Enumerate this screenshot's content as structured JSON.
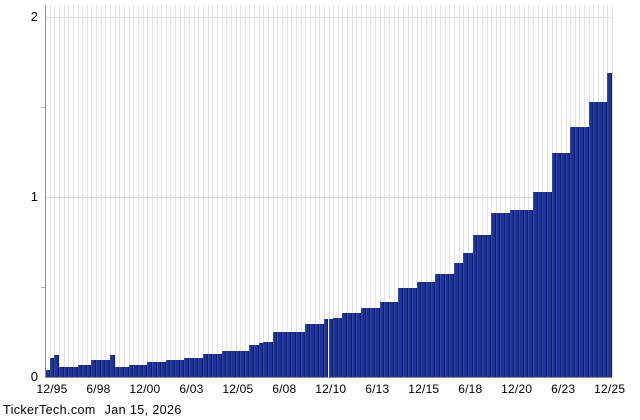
{
  "footer": {
    "source": "TickerTech.com",
    "date": "Jan 15, 2026"
  },
  "colors": {
    "bar_fill": "#1d319c",
    "bar_edge_dark": "#0d1c66",
    "bar_edge_light": "#32489f",
    "grid_vertical": "#e2e2e2",
    "grid_horizontal": "#d9d9d9",
    "axis": "#909090",
    "background": "#ffffff",
    "text": "#000000"
  },
  "chart_data": {
    "type": "bar",
    "title": "",
    "xlabel": "",
    "ylabel": "",
    "ylim": [
      0,
      2
    ],
    "ytick_labels": [
      "0",
      "1",
      "2"
    ],
    "ytick_values": [
      0,
      1,
      2
    ],
    "minor_ytick_values": [
      0.5,
      1.5
    ],
    "grid": "on",
    "legend": "none",
    "x_tick_labels": [
      "12/95",
      "6/98",
      "12/00",
      "6/03",
      "12/05",
      "6/08",
      "12/10",
      "6/13",
      "12/15",
      "6/18",
      "12/20",
      "6/23",
      "12/25"
    ],
    "quarters": [
      "9/95",
      "12/95",
      "3/96",
      "6/96",
      "9/96",
      "12/96",
      "3/97",
      "6/97",
      "9/97",
      "12/97",
      "3/98",
      "6/98",
      "9/98",
      "12/98",
      "3/99",
      "6/99",
      "9/99",
      "12/99",
      "3/00",
      "6/00",
      "9/00",
      "12/00",
      "3/01",
      "6/01",
      "9/01",
      "12/01",
      "3/02",
      "6/02",
      "9/02",
      "12/02",
      "3/03",
      "6/03",
      "9/03",
      "12/03",
      "3/04",
      "6/04",
      "9/04",
      "12/04",
      "3/05",
      "6/05",
      "9/05",
      "12/05",
      "3/06",
      "6/06",
      "9/06",
      "12/06",
      "3/07",
      "6/07",
      "9/07",
      "12/07",
      "3/08",
      "6/08",
      "9/08",
      "12/08",
      "3/09",
      "6/09",
      "9/09",
      "12/09",
      "3/10",
      "6/10",
      "9/10",
      "12/10",
      "3/11",
      "6/11",
      "9/11",
      "12/11",
      "3/12",
      "6/12",
      "9/12",
      "12/12",
      "3/13",
      "6/13",
      "9/13",
      "12/13",
      "3/14",
      "6/14",
      "9/14",
      "12/14",
      "3/15",
      "6/15",
      "9/15",
      "12/15",
      "3/16",
      "6/16",
      "9/16",
      "12/16",
      "3/17",
      "6/17",
      "9/17",
      "12/17",
      "3/18",
      "6/18",
      "9/18",
      "12/18",
      "3/19",
      "6/19",
      "9/19",
      "12/19",
      "3/20",
      "6/20",
      "9/20",
      "12/20",
      "3/21",
      "6/21",
      "9/21",
      "12/21",
      "3/22",
      "6/22",
      "9/22",
      "12/22",
      "3/23",
      "6/23",
      "9/23",
      "12/23",
      "3/24",
      "6/24",
      "9/24",
      "12/24",
      "3/25",
      "6/25",
      "9/25",
      "12/25"
    ],
    "values": [
      0.04,
      0.105,
      0.12,
      0.0575,
      0.0575,
      0.0575,
      0.0575,
      0.068,
      0.068,
      0.068,
      0.095,
      0.095,
      0.095,
      0.095,
      0.124,
      0.0555,
      0.0555,
      0.0555,
      0.0685,
      0.0695,
      0.0695,
      0.0695,
      0.083,
      0.083,
      0.083,
      0.083,
      0.094,
      0.094,
      0.094,
      0.094,
      0.104,
      0.104,
      0.104,
      0.104,
      0.128,
      0.128,
      0.128,
      0.128,
      0.144,
      0.144,
      0.144,
      0.142,
      0.142,
      0.142,
      0.178,
      0.178,
      0.187,
      0.196,
      0.196,
      0.252,
      0.252,
      0.252,
      0.25,
      0.248,
      0.248,
      0.248,
      0.294,
      0.294,
      0.294,
      0.294,
      0.322,
      0.325,
      0.33,
      0.33,
      0.354,
      0.354,
      0.354,
      0.354,
      0.381,
      0.381,
      0.381,
      0.381,
      0.418,
      0.418,
      0.418,
      0.415,
      0.493,
      0.493,
      0.493,
      0.493,
      0.53,
      0.53,
      0.53,
      0.53,
      0.575,
      0.575,
      0.57,
      0.57,
      0.631,
      0.631,
      0.687,
      0.687,
      0.789,
      0.789,
      0.789,
      0.79,
      0.909,
      0.909,
      0.909,
      0.909,
      0.93,
      0.93,
      0.93,
      0.93,
      0.93,
      1.03,
      1.03,
      1.03,
      1.03,
      1.243,
      1.243,
      1.243,
      1.243,
      1.39,
      1.39,
      1.39,
      1.39,
      1.53,
      1.53,
      1.53,
      1.53,
      1.69
    ]
  }
}
